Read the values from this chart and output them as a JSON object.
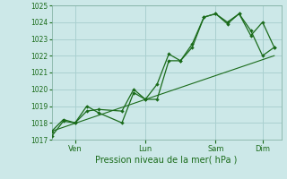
{
  "title": "",
  "xlabel": "Pression niveau de la mer( hPa )",
  "ylabel": "",
  "bg_color": "#cce8e8",
  "grid_color": "#aad0d0",
  "line_color": "#1a6b1a",
  "ylim": [
    1017,
    1025
  ],
  "yticks": [
    1017,
    1018,
    1019,
    1020,
    1021,
    1022,
    1023,
    1024,
    1025
  ],
  "xtick_labels": [
    "Ven",
    "Lun",
    "Sam",
    "Dim"
  ],
  "xtick_positions": [
    1,
    4,
    7,
    9
  ],
  "x_total_min": 0,
  "x_total_max": 9.8,
  "series1_x": [
    0,
    0.5,
    1,
    1.5,
    2,
    3,
    3.5,
    4,
    4.5,
    5,
    5.5,
    6,
    6.5,
    7,
    7.5,
    8,
    8.5,
    9,
    9.5
  ],
  "series1_y": [
    1017.2,
    1018.1,
    1018.0,
    1019.0,
    1018.6,
    1018.0,
    1019.8,
    1019.4,
    1019.4,
    1021.7,
    1021.7,
    1022.5,
    1024.3,
    1024.5,
    1023.9,
    1024.5,
    1023.2,
    1024.0,
    1022.5
  ],
  "series2_x": [
    0,
    0.5,
    1,
    1.5,
    2,
    3,
    3.5,
    4,
    4.5,
    5,
    5.5,
    6,
    6.5,
    7,
    7.5,
    8,
    8.5,
    9,
    9.5
  ],
  "series2_y": [
    1017.5,
    1018.2,
    1018.0,
    1018.7,
    1018.8,
    1018.7,
    1020.0,
    1019.4,
    1020.3,
    1022.1,
    1021.7,
    1022.7,
    1024.3,
    1024.5,
    1024.0,
    1024.5,
    1023.5,
    1022.0,
    1022.5
  ],
  "trend_x": [
    0,
    9.5
  ],
  "trend_y": [
    1017.5,
    1022.0
  ]
}
